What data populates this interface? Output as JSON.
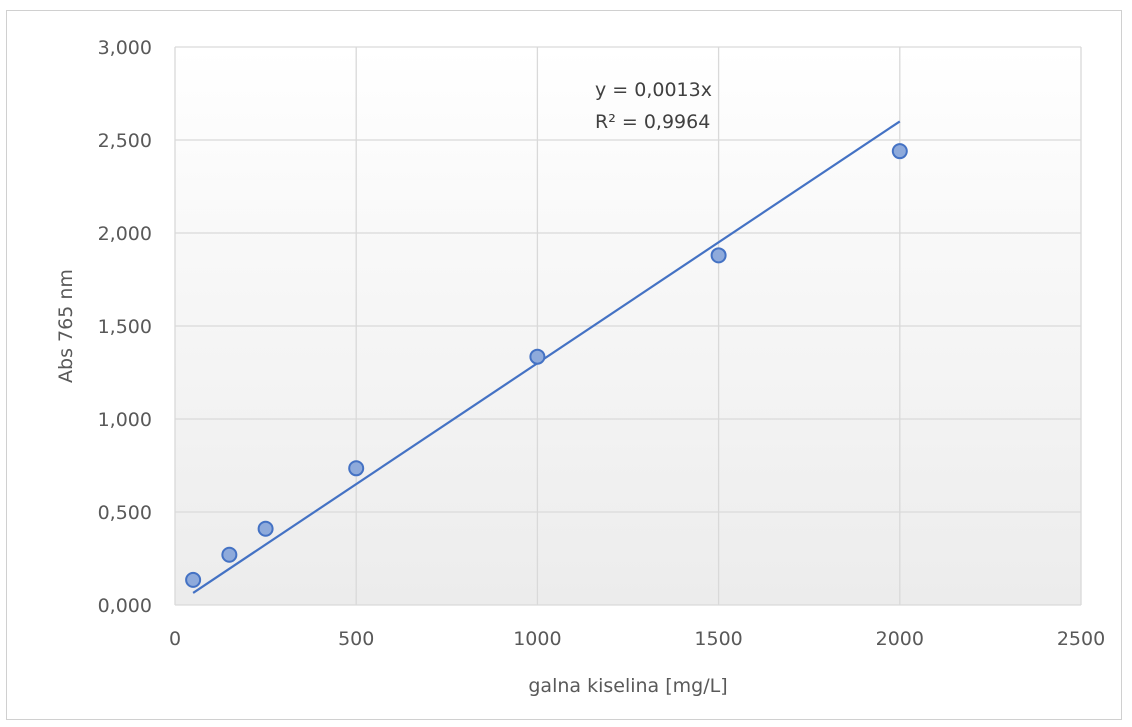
{
  "chart_data": {
    "type": "scatter",
    "title": "",
    "xlabel": "galna kiselina [mg/L]",
    "ylabel": "Abs 765 nm",
    "xlim": [
      0,
      2500
    ],
    "ylim": [
      0,
      3
    ],
    "x_ticks": [
      "0",
      "500",
      "1000",
      "1500",
      "2000",
      "2500"
    ],
    "y_ticks": [
      "0,000",
      "0,500",
      "1,000",
      "1,500",
      "2,000",
      "2,500",
      "3,000"
    ],
    "grid": true,
    "legend": "none",
    "series": [
      {
        "points": [
          {
            "x": 50,
            "y": 0.135
          },
          {
            "x": 150,
            "y": 0.27
          },
          {
            "x": 250,
            "y": 0.41
          },
          {
            "x": 500,
            "y": 0.735
          },
          {
            "x": 1000,
            "y": 1.335
          },
          {
            "x": 1500,
            "y": 1.88
          },
          {
            "x": 2000,
            "y": 2.44
          }
        ],
        "color": "#8eaadb",
        "edge_color": "#4472c4"
      }
    ],
    "trendline": {
      "type": "linear",
      "slope": 0.0013,
      "intercept": 0,
      "x_range": [
        50,
        2000
      ],
      "color": "#4472c4",
      "equation": "y = 0,0013x",
      "r_squared": "R² = 0,9964"
    }
  }
}
